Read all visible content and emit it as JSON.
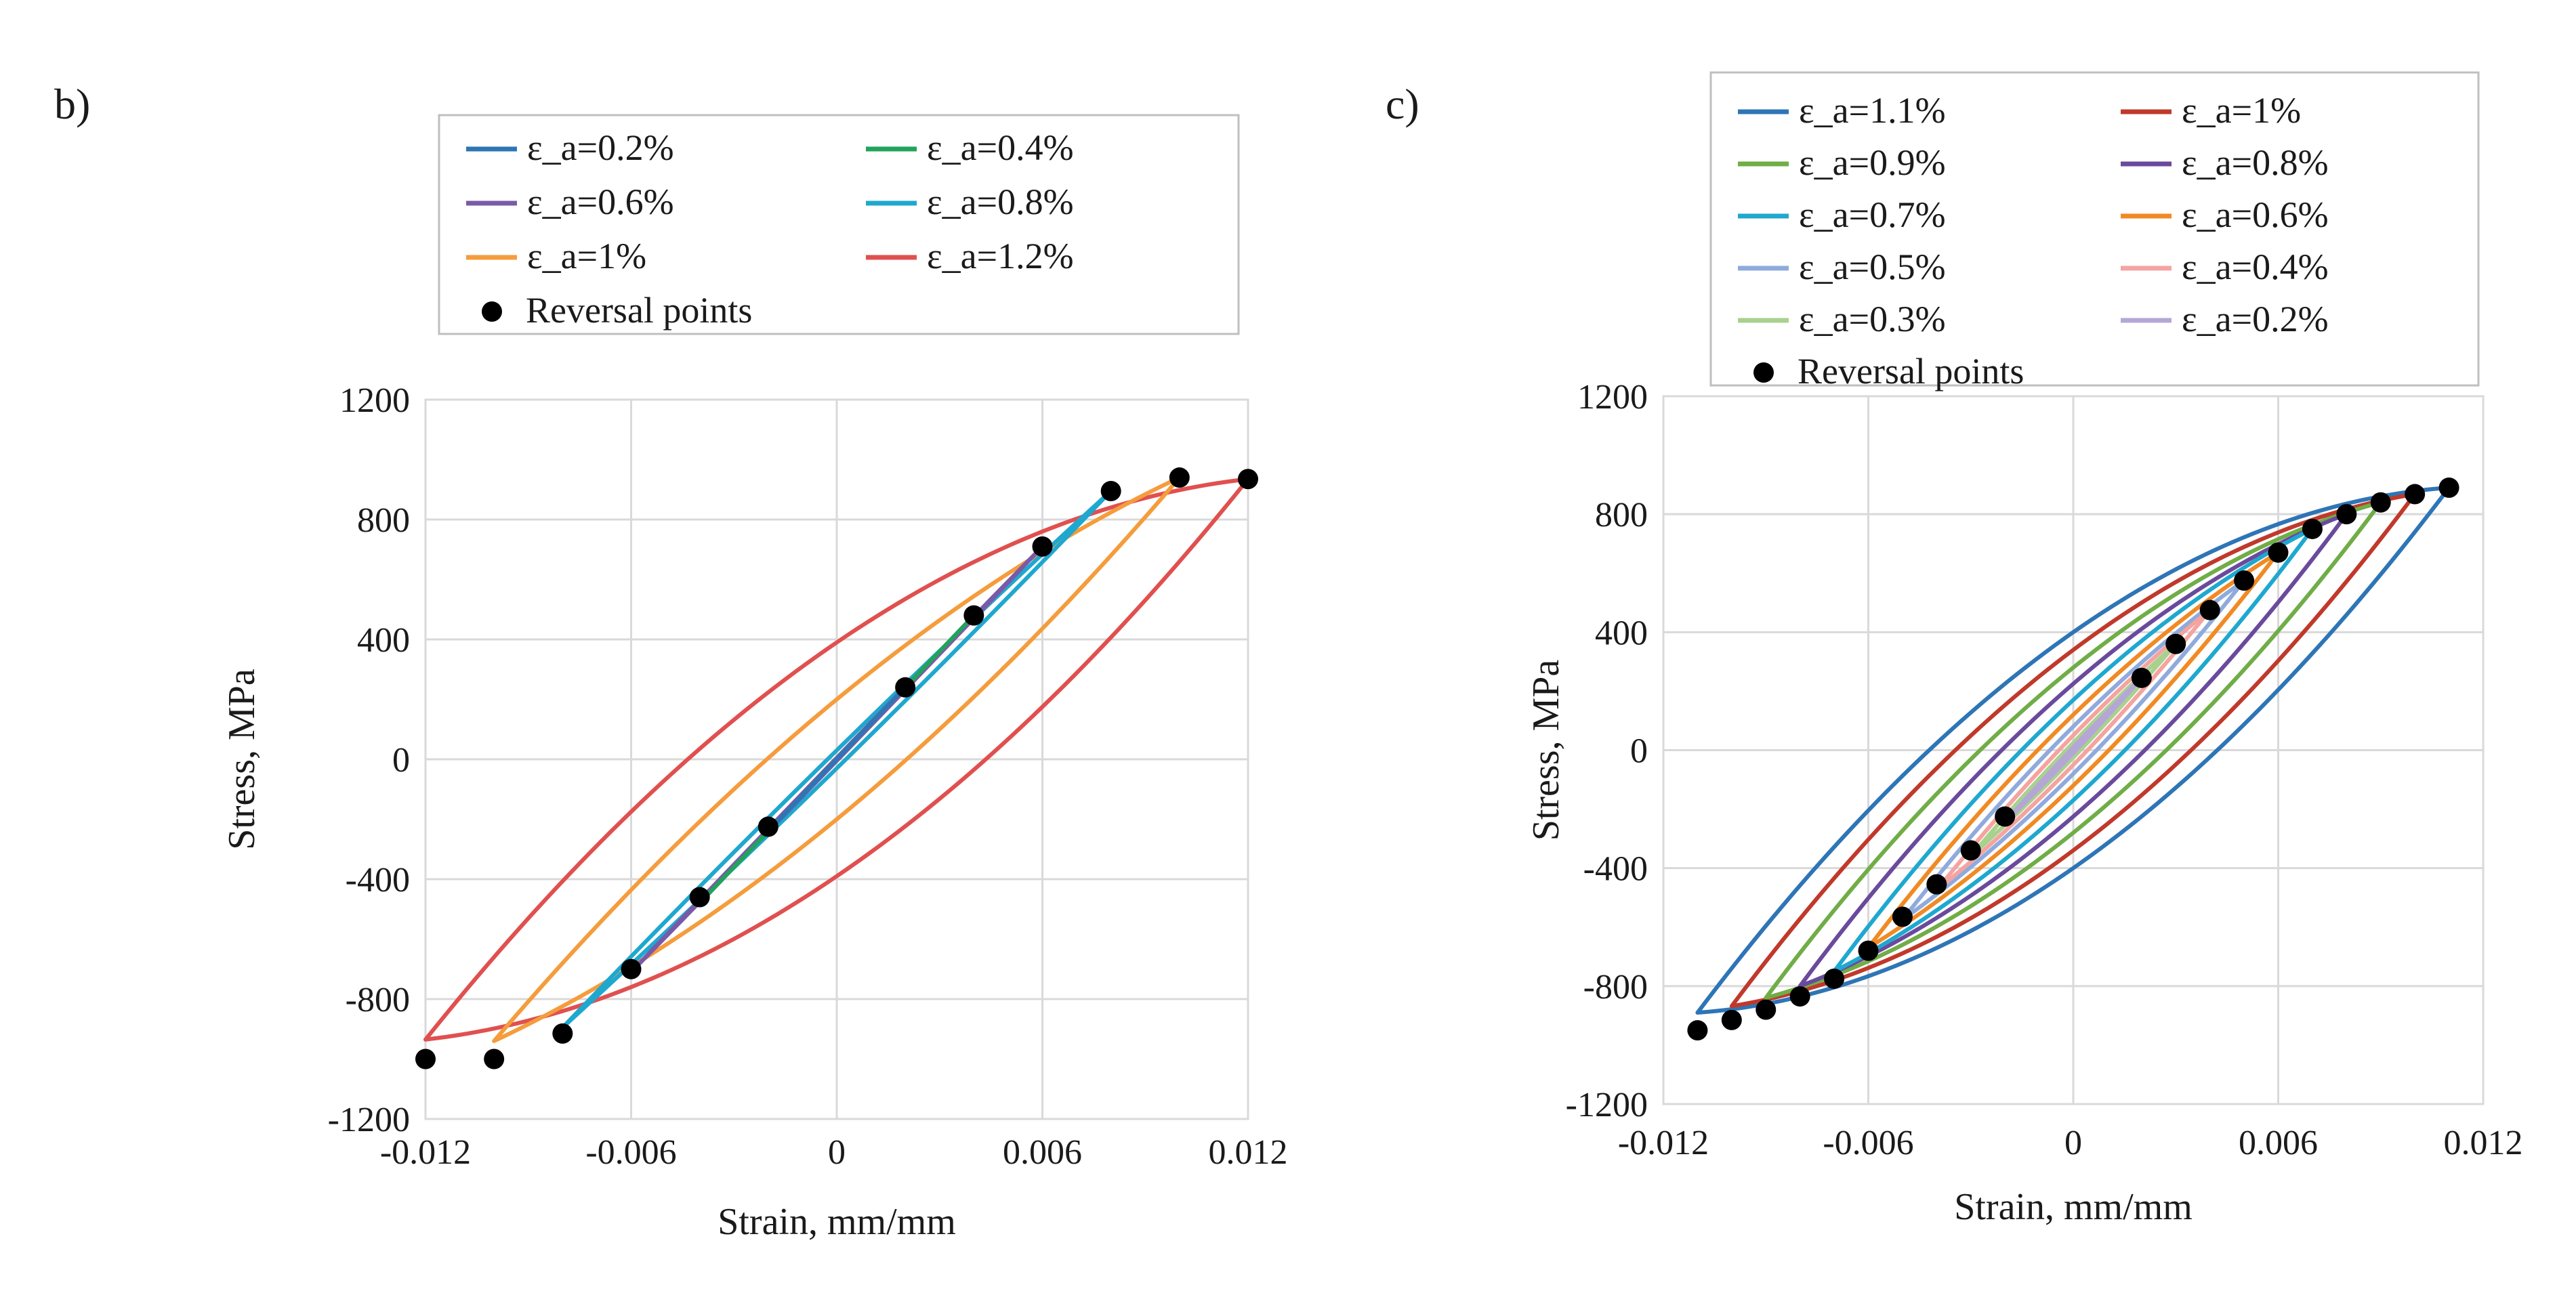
{
  "colors": {
    "grid": "#d9d9d9",
    "legend_border": "#bfbfbf",
    "marker": "#000000"
  },
  "chart_data": [
    {
      "panel_label": "b)",
      "type": "line",
      "xlabel": "Strain, mm/mm",
      "ylabel": "Stress, MPa",
      "xlim": [
        -0.012,
        0.012
      ],
      "ylim": [
        -1200,
        1200
      ],
      "x_ticks": [
        -0.012,
        -0.006,
        0,
        0.006,
        0.012
      ],
      "x_tick_labels": [
        "-0.012",
        "-0.006",
        "0",
        "0.006",
        "0.012"
      ],
      "y_ticks": [
        -1200,
        -800,
        -400,
        0,
        400,
        800,
        1200
      ],
      "y_tick_labels": [
        "-1200",
        "-800",
        "-400",
        "0",
        "400",
        "800",
        "1200"
      ],
      "grid": true,
      "legend_position": "top",
      "legend_columns": 2,
      "series": [
        {
          "name": "ε_a=0.2%",
          "color": "#2e75b6",
          "amplitude": 0.002,
          "peak": 240,
          "half_width": 0
        },
        {
          "name": "ε_a=0.4%",
          "color": "#21a35a",
          "amplitude": 0.004,
          "peak": 480,
          "half_width": 0
        },
        {
          "name": "ε_a=0.6%",
          "color": "#7a5aa8",
          "amplitude": 0.006,
          "peak": 710,
          "half_width": 5
        },
        {
          "name": "ε_a=0.8%",
          "color": "#1fa8cf",
          "amplitude": 0.008,
          "peak": 895,
          "half_width": 30
        },
        {
          "name": "ε_a=1%",
          "color": "#f59c3c",
          "amplitude": 0.01,
          "peak": 940,
          "half_width": 200
        },
        {
          "name": "ε_a=1.2%",
          "color": "#e0504f",
          "amplitude": 0.012,
          "peak": 935,
          "half_width": 390
        }
      ],
      "reversal_points": {
        "name": "Reversal points",
        "points": [
          [
            -0.012,
            -1000
          ],
          [
            -0.01,
            -1000
          ],
          [
            -0.008,
            -915
          ],
          [
            -0.006,
            -700
          ],
          [
            -0.004,
            -460
          ],
          [
            -0.002,
            -225
          ],
          [
            0.002,
            240
          ],
          [
            0.004,
            480
          ],
          [
            0.006,
            710
          ],
          [
            0.008,
            895
          ],
          [
            0.01,
            940
          ],
          [
            0.012,
            935
          ]
        ]
      }
    },
    {
      "panel_label": "c)",
      "type": "line",
      "xlabel": "Strain, mm/mm",
      "ylabel": "Stress, MPa",
      "xlim": [
        -0.012,
        0.012
      ],
      "ylim": [
        -1200,
        1200
      ],
      "x_ticks": [
        -0.012,
        -0.006,
        0,
        0.006,
        0.012
      ],
      "x_tick_labels": [
        "-0.012",
        "-0.006",
        "0",
        "0.006",
        "0.012"
      ],
      "y_ticks": [
        -1200,
        -800,
        -400,
        0,
        400,
        800,
        1200
      ],
      "y_tick_labels": [
        "-1200",
        "-800",
        "-400",
        "0",
        "400",
        "800",
        "1200"
      ],
      "grid": true,
      "legend_position": "top",
      "legend_columns": 2,
      "series": [
        {
          "name": "ε_a=1.1%",
          "color": "#2e75b6",
          "amplitude": 0.011,
          "peak": 890,
          "half_width": 400
        },
        {
          "name": "ε_a=1%",
          "color": "#c0392b",
          "amplitude": 0.01,
          "peak": 868,
          "half_width": 340
        },
        {
          "name": "ε_a=0.9%",
          "color": "#70ad47",
          "amplitude": 0.009,
          "peak": 840,
          "half_width": 280
        },
        {
          "name": "ε_a=0.8%",
          "color": "#6a4a9c",
          "amplitude": 0.008,
          "peak": 800,
          "half_width": 225
        },
        {
          "name": "ε_a=0.7%",
          "color": "#1fa8cf",
          "amplitude": 0.007,
          "peak": 750,
          "half_width": 170
        },
        {
          "name": "ε_a=0.6%",
          "color": "#f08a24",
          "amplitude": 0.006,
          "peak": 670,
          "half_width": 120
        },
        {
          "name": "ε_a=0.5%",
          "color": "#8faadc",
          "amplitude": 0.005,
          "peak": 575,
          "half_width": 80
        },
        {
          "name": "ε_a=0.4%",
          "color": "#f4a4a0",
          "amplitude": 0.004,
          "peak": 475,
          "half_width": 50
        },
        {
          "name": "ε_a=0.3%",
          "color": "#a9d18e",
          "amplitude": 0.003,
          "peak": 360,
          "half_width": 25
        },
        {
          "name": "ε_a=0.2%",
          "color": "#b4a7d6",
          "amplitude": 0.002,
          "peak": 245,
          "half_width": 10
        }
      ],
      "reversal_points": {
        "name": "Reversal points",
        "points": [
          [
            -0.011,
            -950
          ],
          [
            -0.01,
            -915
          ],
          [
            -0.009,
            -880
          ],
          [
            -0.008,
            -835
          ],
          [
            -0.007,
            -775
          ],
          [
            -0.006,
            -680
          ],
          [
            -0.005,
            -565
          ],
          [
            -0.004,
            -455
          ],
          [
            -0.003,
            -340
          ],
          [
            -0.002,
            -225
          ],
          [
            0.002,
            245
          ],
          [
            0.003,
            360
          ],
          [
            0.004,
            475
          ],
          [
            0.005,
            575
          ],
          [
            0.006,
            670
          ],
          [
            0.007,
            750
          ],
          [
            0.008,
            800
          ],
          [
            0.009,
            840
          ],
          [
            0.01,
            868
          ],
          [
            0.011,
            890
          ]
        ]
      }
    }
  ]
}
